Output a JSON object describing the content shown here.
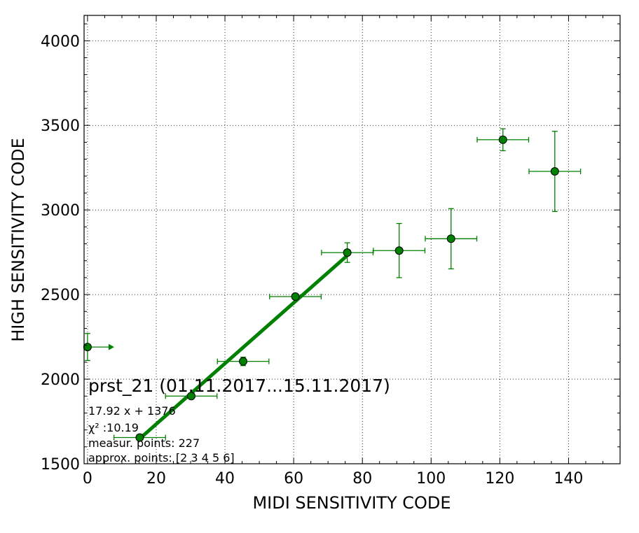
{
  "chart_data": {
    "type": "scatter",
    "xlabel": "MIDI SENSITIVITY CODE",
    "ylabel": "HIGH SENSITIVITY CODE",
    "xlim": [
      -1,
      155
    ],
    "ylim": [
      1500,
      4150
    ],
    "x_ticks": [
      0,
      20,
      40,
      60,
      80,
      100,
      120,
      140
    ],
    "y_ticks": [
      1500,
      2000,
      2500,
      3000,
      3500,
      4000
    ],
    "grid": true,
    "color": "#008000",
    "series": [
      {
        "points": [
          {
            "x": 0,
            "y": 2190,
            "xerr": 0,
            "yerr": 80,
            "arrow_right": true
          },
          {
            "x": 15.2,
            "y": 1655,
            "xerr": 7.5,
            "yerr": 0
          },
          {
            "x": 30.2,
            "y": 1900,
            "xerr": 7.5,
            "yerr": 0
          },
          {
            "x": 45.3,
            "y": 2105,
            "xerr": 7.5,
            "yerr": 25
          },
          {
            "x": 60.5,
            "y": 2488,
            "xerr": 7.5,
            "yerr": 0
          },
          {
            "x": 75.6,
            "y": 2748,
            "xerr": 7.5,
            "yerr": 58
          },
          {
            "x": 90.7,
            "y": 2760,
            "xerr": 7.5,
            "yerr": 160
          },
          {
            "x": 105.8,
            "y": 2830,
            "xerr": 7.5,
            "yerr": 178
          },
          {
            "x": 120.9,
            "y": 3415,
            "xerr": 7.5,
            "yerr": 65
          },
          {
            "x": 136.0,
            "y": 3228,
            "xerr": 7.5,
            "yerr": 237
          }
        ]
      }
    ],
    "fit": {
      "slope": 17.92,
      "intercept": 1376,
      "x_range": [
        15.2,
        75.6
      ]
    },
    "annotations": {
      "title": "prst_21 (01.11.2017...15.11.2017)",
      "fit_text": "17.92 x + 1376",
      "chi2_text": "χ² :10.19",
      "points_text": "measur. points: 227",
      "approx_text": "approx. points: [2 3 4 5 6]"
    }
  }
}
